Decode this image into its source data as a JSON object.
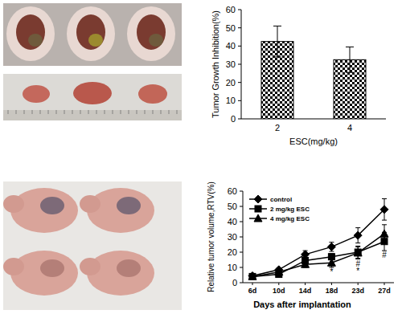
{
  "chart_data": [
    {
      "type": "bar",
      "x_label": "ESC(mg/kg)",
      "y_label": "Tumor Growth Inhibition(%)",
      "categories": [
        "2",
        "4"
      ],
      "values": [
        42.5,
        32.5
      ],
      "errors": [
        8.5,
        7
      ],
      "color": "#000000",
      "ylim": [
        0,
        60
      ],
      "yticks": [
        0,
        10,
        20,
        30,
        40,
        50,
        60
      ],
      "grid": false
    },
    {
      "type": "line",
      "x_label": "Days after implantation",
      "y_label": "Relative tumor volume,RTV(%)",
      "categories": [
        "6d",
        "10d",
        "14d",
        "18d",
        "23d",
        "27d"
      ],
      "series": [
        {
          "name": "control",
          "color": "#000000",
          "marker": "diamond",
          "line_style": "solid",
          "values": [
            4.5,
            8.5,
            18.5,
            23.5,
            31,
            48
          ],
          "errors": [
            0.5,
            1,
            2.5,
            3,
            5,
            7
          ]
        },
        {
          "name": "2 mg/kg ESC",
          "color": "#000000",
          "marker": "square",
          "line_style": "solid",
          "values": [
            4,
            5.5,
            14.5,
            17,
            20,
            27
          ],
          "errors": [
            0.5,
            1,
            3,
            2,
            4,
            6
          ]
        },
        {
          "name": "4 mg/kg ESC",
          "color": "#000000",
          "marker": "triangle",
          "line_style": "solid",
          "values": [
            4,
            7,
            12,
            13,
            19.5,
            32
          ],
          "errors": [
            0.5,
            1,
            2,
            3,
            4,
            6
          ]
        }
      ],
      "annotations": [
        {
          "text": "*",
          "x": "18d"
        },
        {
          "text": "#",
          "x": "23d"
        },
        {
          "text": "*",
          "x": "23d"
        },
        {
          "text": "#",
          "x": "27d"
        }
      ],
      "ylim": [
        0,
        60
      ],
      "yticks": [
        0,
        10,
        20,
        30,
        40,
        50,
        60
      ],
      "legend": "top-left",
      "grid": false
    }
  ]
}
